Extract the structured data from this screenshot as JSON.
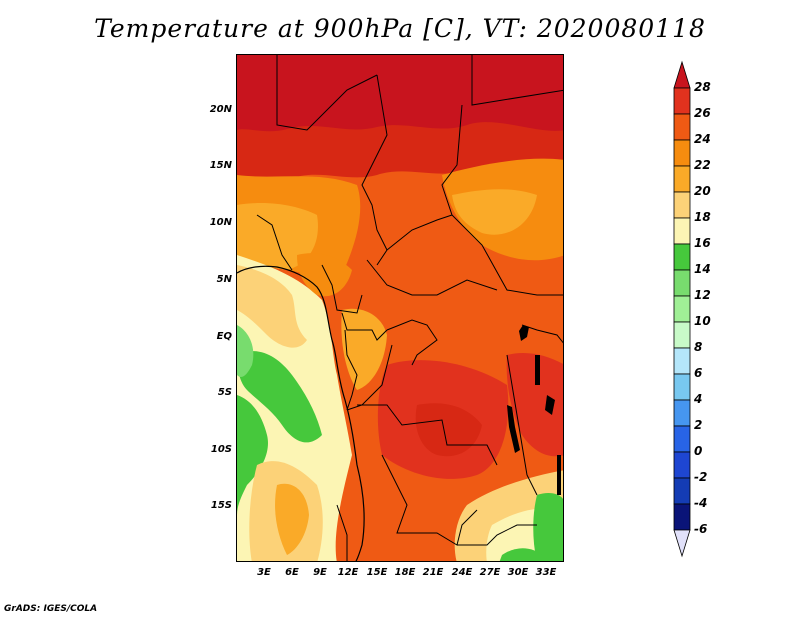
{
  "title": "Temperature at 900hPa [C], VT: 2020080118",
  "footer": "GrADS: IGES/COLA",
  "lat_labels": [
    "20N",
    "15N",
    "10N",
    "5N",
    "EQ",
    "5S",
    "10S",
    "15S"
  ],
  "lon_labels": [
    "3E",
    "6E",
    "9E",
    "12E",
    "15E",
    "18E",
    "21E",
    "24E",
    "27E",
    "30E",
    "33E"
  ],
  "colorbar": {
    "levels": [
      "28",
      "26",
      "24",
      "22",
      "20",
      "18",
      "16",
      "14",
      "12",
      "10",
      "8",
      "6",
      "4",
      "2",
      "0",
      "-2",
      "-4",
      "-6"
    ],
    "colors": [
      "#c8141e",
      "#e1321e",
      "#ef5a14",
      "#f68c0f",
      "#faaa28",
      "#fcd278",
      "#fcf5b4",
      "#46c83c",
      "#78dc6e",
      "#a0f096",
      "#c8fac8",
      "#b4e6fa",
      "#78c8f0",
      "#4696f0",
      "#2864e6",
      "#1e46d2",
      "#143cb4",
      "#0a1478"
    ],
    "top_arrow": "#c8141e",
    "bottom_arrow": "#e1e1fa"
  }
}
